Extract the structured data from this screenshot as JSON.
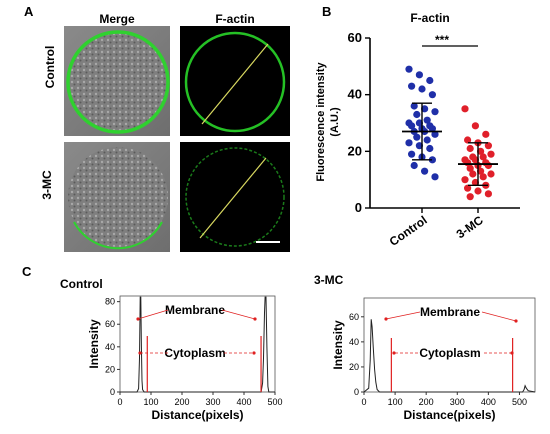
{
  "panels": {
    "a": "A",
    "b": "B",
    "c": "C"
  },
  "panel_a": {
    "col_headers": [
      "Merge",
      "F-actin"
    ],
    "row_labels": [
      "Control",
      "3-MC"
    ]
  },
  "chart_data": [
    {
      "type": "scatter",
      "title": "F-actin",
      "ylabel": "Fluorescence intensity (A.U.)",
      "ylabel_lines": [
        "Fluorescence intensity",
        "(A.U.)"
      ],
      "ylim": [
        0,
        60
      ],
      "yticks": [
        0,
        20,
        40,
        60
      ],
      "categories": [
        "Control",
        "3-MC"
      ],
      "significance": "***",
      "series": [
        {
          "name": "Control",
          "color": "#1f2fa8",
          "mean": 27,
          "sd": 10,
          "values": [
            49,
            47,
            45,
            43,
            42,
            40,
            36,
            35,
            34,
            33,
            31,
            30,
            30,
            29,
            29,
            28,
            28,
            27,
            27,
            26,
            25,
            24,
            23,
            22,
            21,
            19,
            18,
            17,
            15,
            13,
            11
          ]
        },
        {
          "name": "3-MC",
          "color": "#e0202a",
          "mean": 15.5,
          "sd": 7.5,
          "values": [
            35,
            29,
            26,
            24,
            23,
            22,
            21,
            20,
            19,
            18,
            18,
            17,
            17,
            16,
            16,
            15,
            15,
            14,
            13,
            12,
            12,
            11,
            10,
            9,
            8,
            7,
            6,
            5,
            4
          ]
        }
      ]
    },
    {
      "type": "line",
      "title": "Control",
      "xlabel": "Distance(pixels)",
      "ylabel": "Intensity",
      "xlim": [
        0,
        500
      ],
      "ylim": [
        0,
        85
      ],
      "xticks": [
        0,
        100,
        200,
        300,
        400,
        500
      ],
      "yticks": [
        0,
        20,
        40,
        60,
        80
      ],
      "annotations": [
        "Membrane",
        "Cytoplasm"
      ],
      "red_lines_x": [
        88,
        455
      ],
      "points": [
        [
          0,
          0
        ],
        [
          55,
          0
        ],
        [
          60,
          3
        ],
        [
          63,
          30
        ],
        [
          65,
          84
        ],
        [
          67,
          84
        ],
        [
          69,
          40
        ],
        [
          71,
          10
        ],
        [
          73,
          2
        ],
        [
          78,
          0
        ],
        [
          455,
          0
        ],
        [
          460,
          8
        ],
        [
          463,
          30
        ],
        [
          466,
          70
        ],
        [
          468,
          84
        ],
        [
          471,
          84
        ],
        [
          474,
          40
        ],
        [
          477,
          5
        ],
        [
          480,
          0
        ],
        [
          500,
          0
        ]
      ]
    },
    {
      "type": "line",
      "title": "3-MC",
      "xlabel": "Distance(pixels)",
      "ylabel": "Intensity",
      "xlim": [
        0,
        550
      ],
      "ylim": [
        0,
        75
      ],
      "xticks": [
        0,
        100,
        200,
        300,
        400,
        500
      ],
      "yticks": [
        0,
        20,
        40,
        60
      ],
      "annotations": [
        "Membrane",
        "Cytoplasm"
      ],
      "red_lines_x": [
        88,
        478
      ],
      "points": [
        [
          0,
          0
        ],
        [
          15,
          3
        ],
        [
          20,
          25
        ],
        [
          23,
          58
        ],
        [
          26,
          52
        ],
        [
          30,
          35
        ],
        [
          34,
          18
        ],
        [
          38,
          8
        ],
        [
          42,
          2
        ],
        [
          50,
          0
        ],
        [
          510,
          0
        ],
        [
          515,
          2
        ],
        [
          518,
          5
        ],
        [
          522,
          3
        ],
        [
          528,
          1
        ],
        [
          550,
          0
        ]
      ]
    }
  ]
}
